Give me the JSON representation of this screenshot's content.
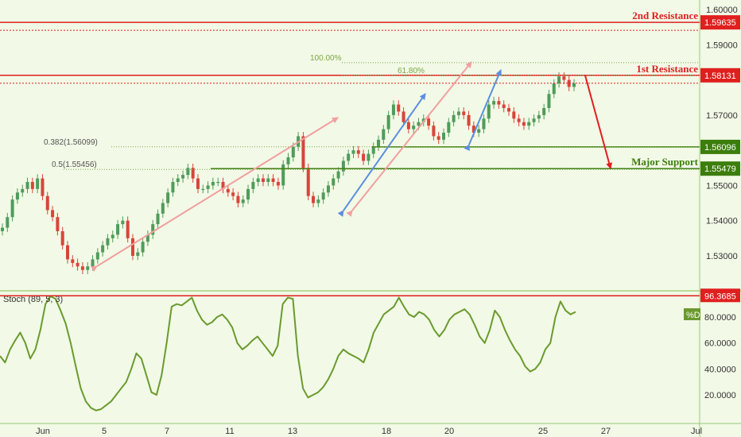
{
  "chart_data": [
    {
      "type": "candlestick",
      "ylim": [
        1.522,
        1.605
      ],
      "y_ticks": [
        "1.60000",
        "1.59000",
        "1.57000",
        "1.55000",
        "1.54000",
        "1.53000"
      ],
      "x_ticks": [
        "Jun",
        "5",
        "7",
        "11",
        "13",
        "18",
        "20",
        "25",
        "27",
        "Jul"
      ],
      "levels": [
        {
          "name": "2nd Resistance",
          "value": 1.59635,
          "label": "1.59635",
          "color": "#e01f1f"
        },
        {
          "name": "1st Resistance",
          "value": 1.58131,
          "label": "1.58131",
          "color": "#e01f1f"
        },
        {
          "name": "",
          "value": 1.56096,
          "label": "1.56096",
          "color": "#3c7d0c"
        },
        {
          "name": "Major Support",
          "value": 1.55479,
          "label": "1.55479",
          "color": "#3c7d0c"
        }
      ],
      "fib_labels": {
        "f100": "100.00%",
        "f618": "61.80%",
        "f382": "0.382(1.56099)",
        "f05": "0.5(1.55456)"
      },
      "close_path": [
        1.538,
        1.541,
        1.546,
        1.548,
        1.549,
        1.551,
        1.549,
        1.552,
        1.547,
        1.543,
        1.541,
        1.537,
        1.533,
        1.529,
        1.528,
        1.527,
        1.526,
        1.527,
        1.529,
        1.531,
        1.533,
        1.535,
        1.536,
        1.539,
        1.54,
        1.535,
        1.53,
        1.531,
        1.534,
        1.536,
        1.539,
        1.542,
        1.545,
        1.548,
        1.551,
        1.552,
        1.553,
        1.555,
        1.552,
        1.549,
        1.549,
        1.55,
        1.551,
        1.551,
        1.549,
        1.548,
        1.547,
        1.545,
        1.546,
        1.549,
        1.551,
        1.552,
        1.551,
        1.552,
        1.551,
        1.55,
        1.556,
        1.558,
        1.561,
        1.564,
        1.555,
        1.547,
        1.545,
        1.546,
        1.548,
        1.55,
        1.552,
        1.554,
        1.557,
        1.559,
        1.56,
        1.559,
        1.557,
        1.559,
        1.561,
        1.563,
        1.566,
        1.57,
        1.573,
        1.571,
        1.568,
        1.566,
        1.567,
        1.568,
        1.569,
        1.567,
        1.564,
        1.563,
        1.565,
        1.568,
        1.57,
        1.571,
        1.57,
        1.567,
        1.565,
        1.566,
        1.569,
        1.573,
        1.574,
        1.573,
        1.572,
        1.571,
        1.569,
        1.568,
        1.567,
        1.568,
        1.569,
        1.57,
        1.572,
        1.576,
        1.579,
        1.581,
        1.58,
        1.578,
        1.579
      ]
    },
    {
      "type": "line",
      "title": "Stoch (89, 5, 3)",
      "series": [
        {
          "name": "%D"
        }
      ],
      "ylim": [
        0,
        100
      ],
      "y_ticks": [
        "80.0000",
        "60.0000",
        "40.0000",
        "20.0000"
      ],
      "level": {
        "value": 96.3685,
        "label": "96.3685"
      },
      "values": [
        50,
        45,
        55,
        62,
        68,
        60,
        48,
        55,
        70,
        90,
        96,
        94,
        85,
        75,
        60,
        42,
        25,
        15,
        10,
        8,
        9,
        12,
        15,
        20,
        25,
        30,
        40,
        52,
        48,
        35,
        22,
        20,
        35,
        60,
        88,
        90,
        89,
        92,
        95,
        85,
        78,
        74,
        76,
        80,
        82,
        78,
        72,
        60,
        55,
        58,
        62,
        65,
        60,
        55,
        50,
        58,
        90,
        95,
        94,
        50,
        25,
        18,
        20,
        22,
        26,
        32,
        40,
        50,
        55,
        52,
        50,
        48,
        45,
        55,
        68,
        75,
        82,
        85,
        88,
        95,
        88,
        82,
        80,
        84,
        82,
        78,
        70,
        65,
        70,
        78,
        82,
        84,
        86,
        82,
        74,
        65,
        60,
        70,
        85,
        80,
        70,
        62,
        55,
        50,
        42,
        38,
        40,
        45,
        55,
        60,
        80,
        92,
        85,
        82,
        84
      ]
    }
  ]
}
